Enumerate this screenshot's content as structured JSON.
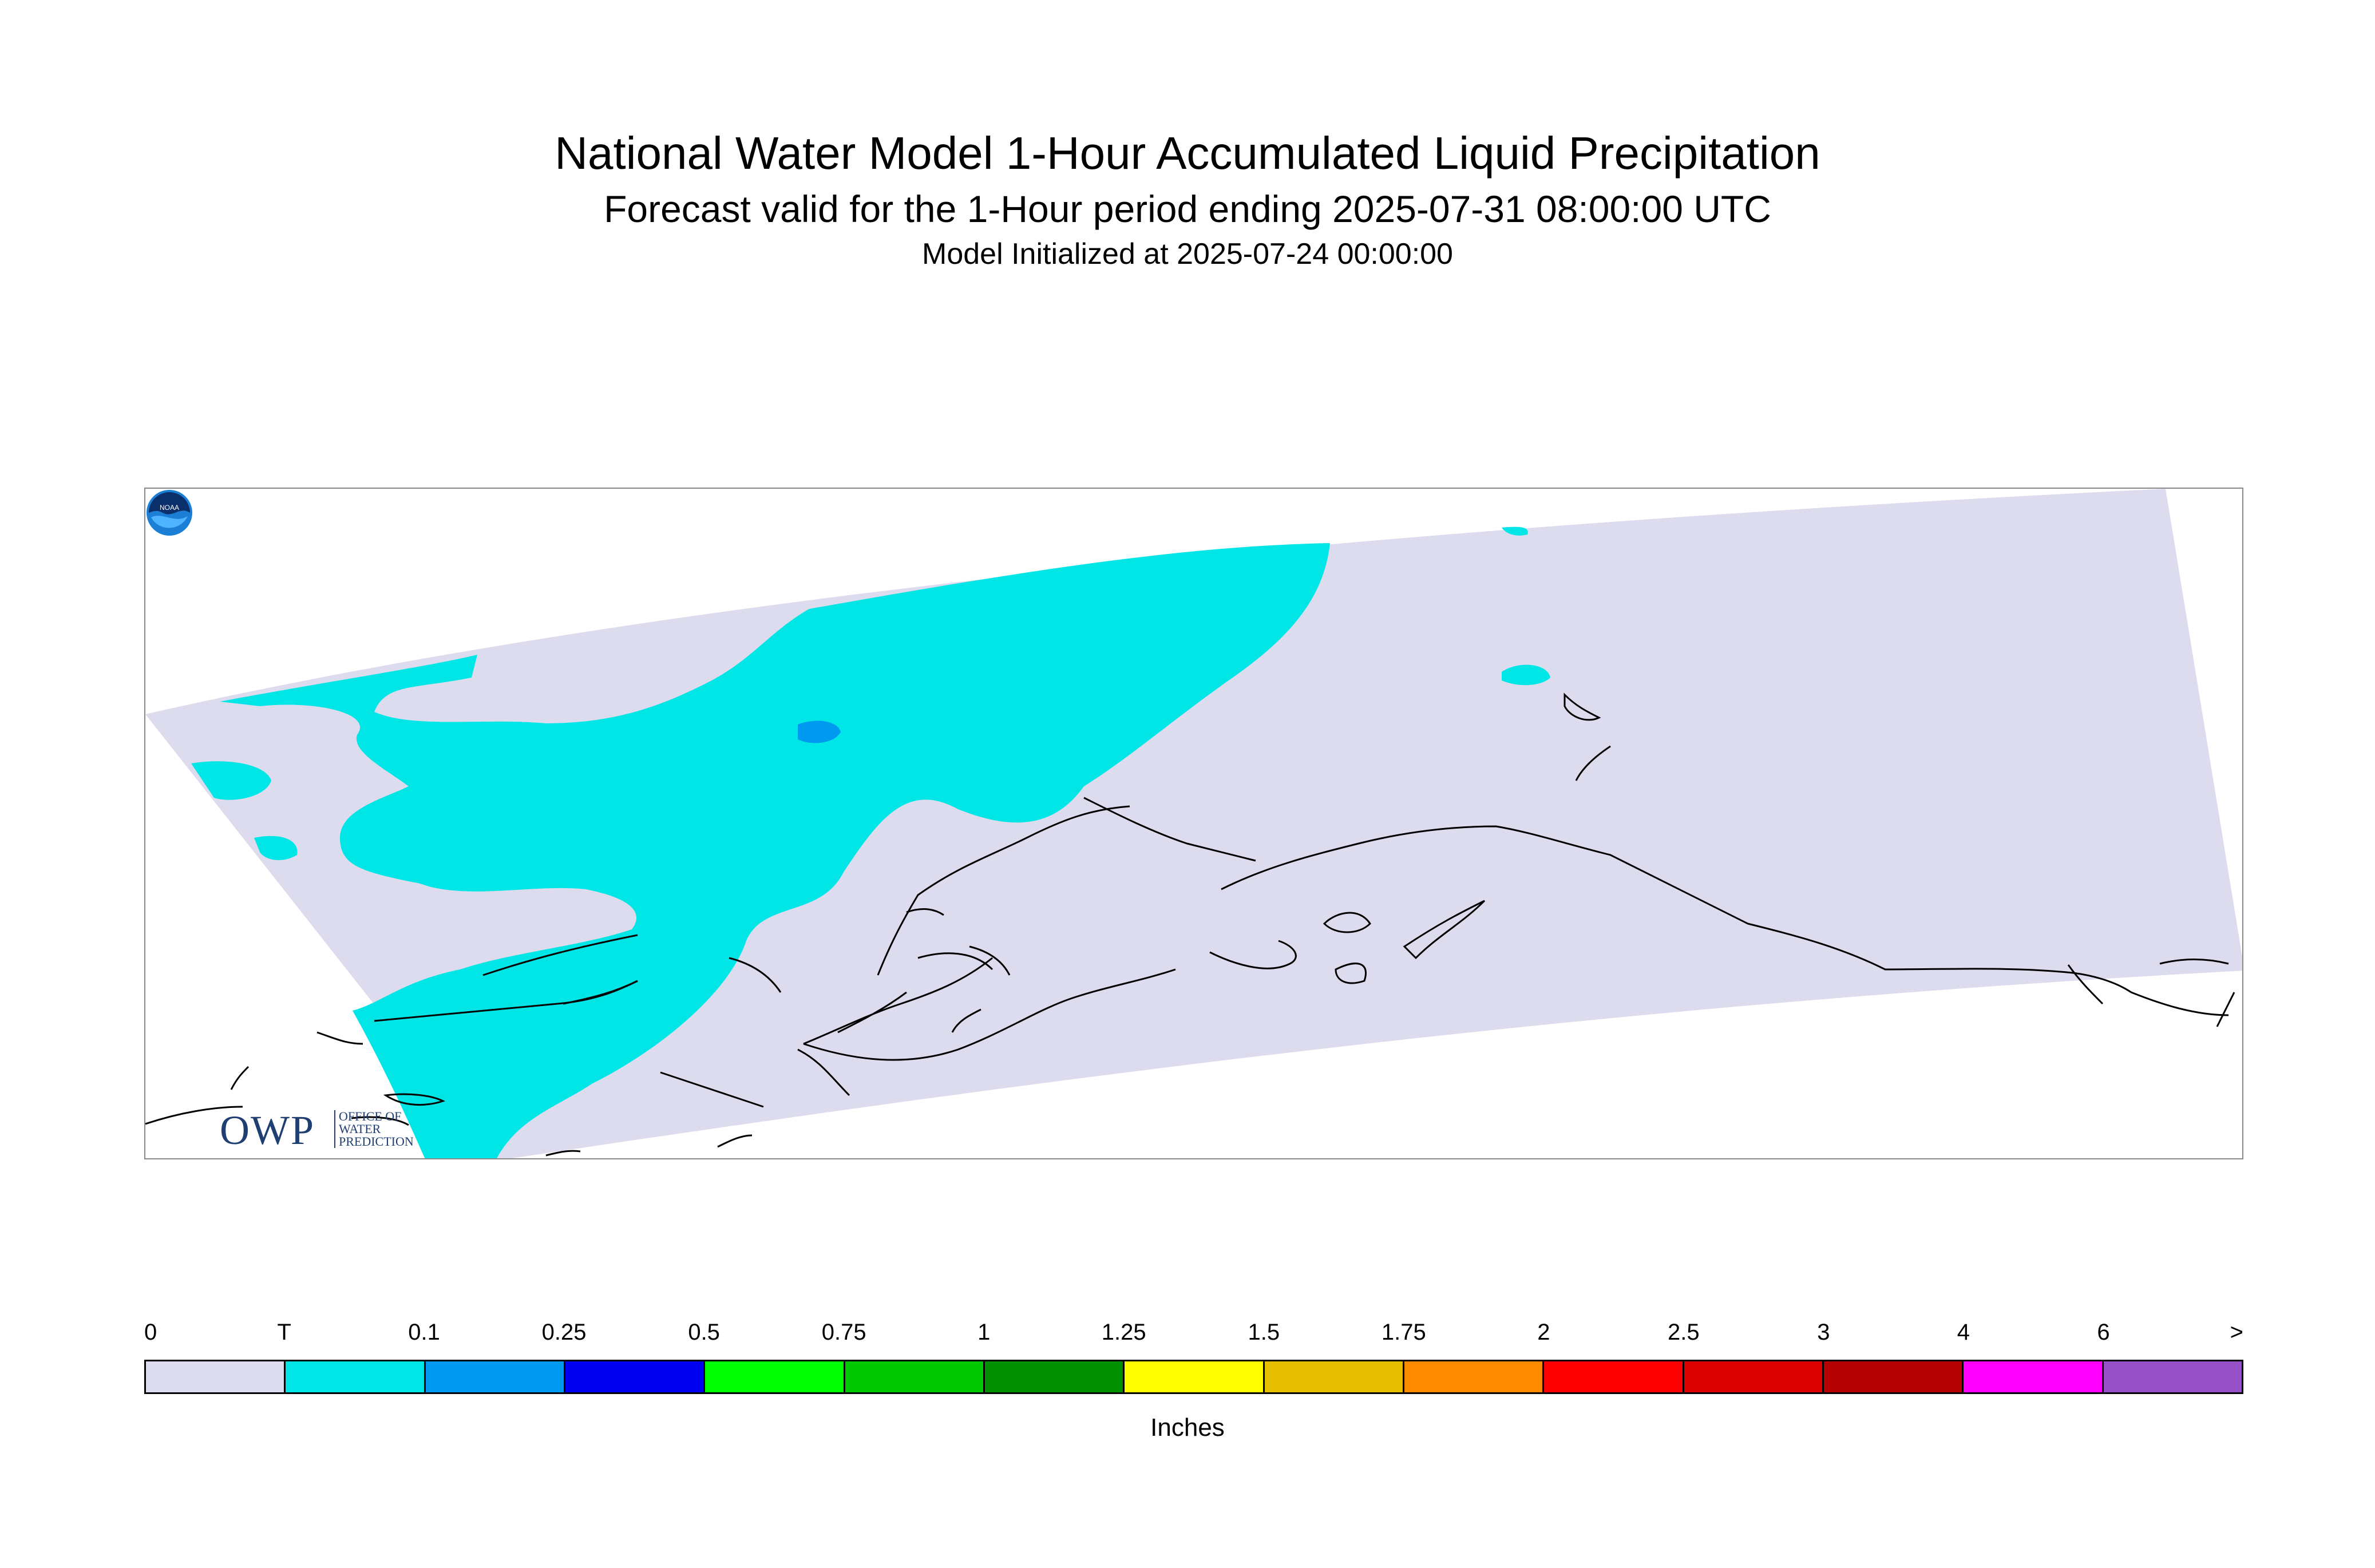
{
  "title": "National Water Model 1-Hour Accumulated Liquid Precipitation",
  "subtitle": "Forecast valid for the 1-Hour period ending 2025-07-31 08:00:00 UTC",
  "init": "Model Initialized at 2025-07-24 00:00:00",
  "logos": {
    "owp_letters": "OWP",
    "owp_sub": "OFFICE OF WATER PREDICTION",
    "noaa": "NOAA"
  },
  "colors": {
    "domain": "#dcdcee",
    "trace": "#00e6e6",
    "light_blue": "#0099f0",
    "coast": "#000000"
  },
  "legend": {
    "labels": [
      "0",
      "T",
      "0.1",
      "0.25",
      "0.5",
      "0.75",
      "1",
      "1.25",
      "1.5",
      "1.75",
      "2",
      "2.5",
      "3",
      "4",
      "6",
      ">"
    ],
    "colors": [
      "#dcdcee",
      "#00e6e6",
      "#0099f0",
      "#0000f0",
      "#00ff00",
      "#00c800",
      "#009000",
      "#ffff00",
      "#e6be00",
      "#ff8c00",
      "#ff0000",
      "#dc0000",
      "#b40000",
      "#ff00ff",
      "#9650c8"
    ],
    "units": "Inches"
  }
}
